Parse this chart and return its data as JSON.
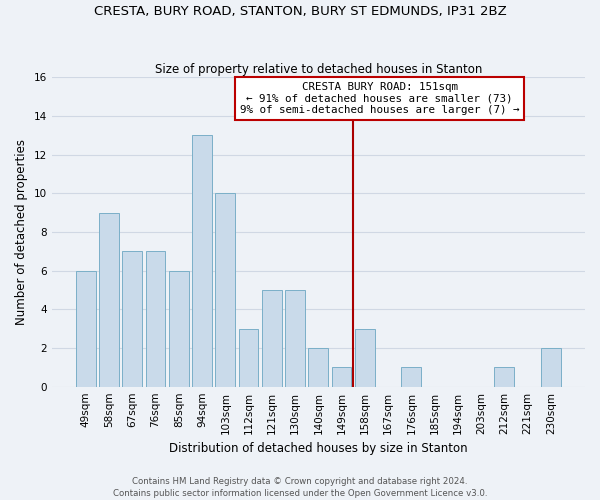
{
  "title": "CRESTA, BURY ROAD, STANTON, BURY ST EDMUNDS, IP31 2BZ",
  "subtitle": "Size of property relative to detached houses in Stanton",
  "xlabel": "Distribution of detached houses by size in Stanton",
  "ylabel": "Number of detached properties",
  "bar_labels": [
    "49sqm",
    "58sqm",
    "67sqm",
    "76sqm",
    "85sqm",
    "94sqm",
    "103sqm",
    "112sqm",
    "121sqm",
    "130sqm",
    "140sqm",
    "149sqm",
    "158sqm",
    "167sqm",
    "176sqm",
    "185sqm",
    "194sqm",
    "203sqm",
    "212sqm",
    "221sqm",
    "230sqm"
  ],
  "bar_values": [
    6,
    9,
    7,
    7,
    6,
    13,
    10,
    3,
    5,
    5,
    2,
    1,
    3,
    0,
    1,
    0,
    0,
    0,
    1,
    0,
    2
  ],
  "bar_color": "#c9daea",
  "bar_edge_color": "#7aafc8",
  "vline_color": "#aa0000",
  "ylim": [
    0,
    16
  ],
  "yticks": [
    0,
    2,
    4,
    6,
    8,
    10,
    12,
    14,
    16
  ],
  "annotation_title": "CRESTA BURY ROAD: 151sqm",
  "annotation_line1": "← 91% of detached houses are smaller (73)",
  "annotation_line2": "9% of semi-detached houses are larger (7) →",
  "footer_line1": "Contains HM Land Registry data © Crown copyright and database right 2024.",
  "footer_line2": "Contains public sector information licensed under the Open Government Licence v3.0.",
  "bg_color": "#eef2f7",
  "grid_color": "#d0d8e4",
  "title_fontsize": 9.5,
  "subtitle_fontsize": 8.5,
  "ylabel_fontsize": 8.5,
  "xlabel_fontsize": 8.5,
  "tick_fontsize": 7.5,
  "footer_fontsize": 6.2
}
